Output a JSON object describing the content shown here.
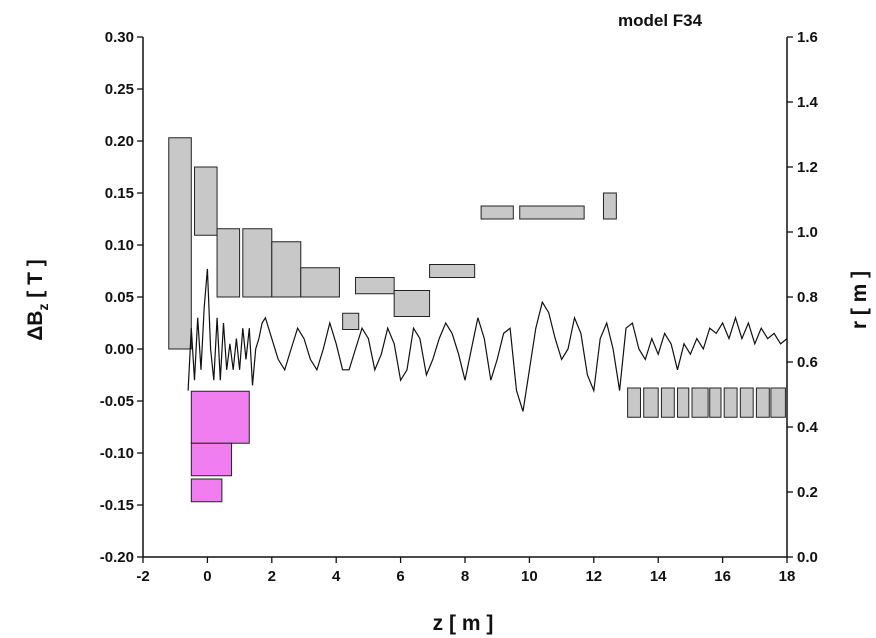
{
  "chart_data": {
    "type": "line",
    "annotation": "model F34",
    "xlabel": "z  [ m ]",
    "ylabel_left": "ΔB",
    "ylabel_left_sub": "z",
    "ylabel_left_unit": "  [ T ]",
    "ylabel_right": "r  [ m ]",
    "xlim": [
      -2,
      18
    ],
    "ylim_left": [
      -0.2,
      0.3
    ],
    "ylim_right": [
      0.0,
      1.6
    ],
    "x_ticks": [
      "-2",
      "0",
      "2",
      "4",
      "6",
      "8",
      "10",
      "12",
      "14",
      "16",
      "18"
    ],
    "y_left_ticks": [
      "-0.20",
      "-0.15",
      "-0.10",
      "-0.05",
      "0.00",
      "0.05",
      "0.10",
      "0.15",
      "0.20",
      "0.25",
      "0.30"
    ],
    "y_right_ticks": [
      "0.0",
      "0.2",
      "0.4",
      "0.6",
      "0.8",
      "1.0",
      "1.2",
      "1.4",
      "1.6"
    ],
    "series": [
      {
        "x": [
          -0.6,
          -0.5,
          -0.4,
          -0.3,
          -0.2,
          -0.1,
          0.0,
          0.1,
          0.2,
          0.3,
          0.4,
          0.5,
          0.6,
          0.7,
          0.8,
          0.9,
          1.0,
          1.1,
          1.2,
          1.3,
          1.4,
          1.5,
          1.6,
          1.7,
          1.8,
          1.9,
          2.0,
          2.2,
          2.4,
          2.6,
          2.8,
          3.0,
          3.2,
          3.4,
          3.6,
          3.8,
          4.0,
          4.2,
          4.4,
          4.6,
          4.8,
          5.0,
          5.2,
          5.4,
          5.6,
          5.8,
          6.0,
          6.2,
          6.4,
          6.6,
          6.8,
          7.0,
          7.2,
          7.4,
          7.6,
          7.8,
          8.0,
          8.2,
          8.4,
          8.6,
          8.8,
          9.0,
          9.2,
          9.4,
          9.6,
          9.8,
          10.0,
          10.2,
          10.4,
          10.6,
          10.8,
          11.0,
          11.2,
          11.4,
          11.6,
          11.8,
          12.0,
          12.2,
          12.4,
          12.6,
          12.8,
          13.0,
          13.2,
          13.4,
          13.6,
          13.8,
          14.0,
          14.2,
          14.4,
          14.6,
          14.8,
          15.0,
          15.2,
          15.4,
          15.6,
          15.8,
          16.0,
          16.2,
          16.4,
          16.6,
          16.8,
          17.0,
          17.2,
          17.4,
          17.6,
          17.8,
          18.0
        ],
        "y": [
          -0.04,
          0.02,
          -0.03,
          0.03,
          -0.02,
          0.04,
          0.077,
          0.0,
          -0.03,
          0.03,
          -0.03,
          0.025,
          -0.02,
          0.005,
          -0.02,
          0.01,
          -0.02,
          0.02,
          -0.01,
          0.02,
          -0.035,
          0.0,
          0.01,
          0.025,
          0.03,
          0.02,
          0.01,
          -0.01,
          -0.02,
          0.0,
          0.02,
          0.01,
          -0.01,
          -0.02,
          0.0,
          0.025,
          0.005,
          -0.02,
          -0.02,
          0.0,
          0.02,
          0.01,
          -0.02,
          -0.005,
          0.02,
          0.005,
          -0.03,
          -0.02,
          0.02,
          0.01,
          -0.025,
          -0.01,
          0.01,
          0.025,
          0.015,
          -0.005,
          -0.03,
          0.0,
          0.03,
          0.01,
          -0.03,
          -0.01,
          0.015,
          0.02,
          -0.04,
          -0.06,
          -0.02,
          0.02,
          0.045,
          0.035,
          0.01,
          -0.01,
          0.0,
          0.03,
          0.015,
          -0.025,
          -0.04,
          0.01,
          0.025,
          0.0,
          -0.04,
          0.02,
          0.025,
          0.0,
          -0.01,
          0.01,
          -0.005,
          0.015,
          0.005,
          -0.02,
          0.005,
          -0.005,
          0.01,
          0.0,
          0.02,
          0.015,
          0.025,
          0.01,
          0.03,
          0.01,
          0.025,
          0.005,
          0.02,
          0.01,
          0.015,
          0.005,
          0.01
        ]
      }
    ],
    "gray_blocks_r": [
      {
        "z": [
          -1.2,
          -0.5
        ],
        "r": [
          0.64,
          1.29
        ]
      },
      {
        "z": [
          -0.4,
          0.3
        ],
        "r": [
          0.99,
          1.2
        ]
      },
      {
        "z": [
          0.3,
          1.0
        ],
        "r": [
          0.8,
          1.01
        ]
      },
      {
        "z": [
          1.1,
          2.0
        ],
        "r": [
          0.8,
          1.01
        ]
      },
      {
        "z": [
          2.0,
          2.9
        ],
        "r": [
          0.8,
          0.97
        ]
      },
      {
        "z": [
          2.9,
          4.1
        ],
        "r": [
          0.8,
          0.89
        ]
      },
      {
        "z": [
          4.2,
          4.7
        ],
        "r": [
          0.7,
          0.75
        ]
      },
      {
        "z": [
          4.6,
          5.8
        ],
        "r": [
          0.81,
          0.86
        ]
      },
      {
        "z": [
          5.8,
          6.9
        ],
        "r": [
          0.74,
          0.82
        ]
      },
      {
        "z": [
          6.9,
          8.3
        ],
        "r": [
          0.86,
          0.9
        ]
      },
      {
        "z": [
          8.5,
          9.5
        ],
        "r": [
          1.04,
          1.08
        ]
      },
      {
        "z": [
          9.7,
          11.7
        ],
        "r": [
          1.04,
          1.08
        ]
      },
      {
        "z": [
          12.3,
          12.7
        ],
        "r": [
          1.04,
          1.12
        ]
      },
      {
        "z": [
          13.05,
          13.45
        ],
        "r": [
          0.43,
          0.52
        ]
      },
      {
        "z": [
          13.55,
          14.0
        ],
        "r": [
          0.43,
          0.52
        ]
      },
      {
        "z": [
          14.1,
          14.5
        ],
        "r": [
          0.43,
          0.52
        ]
      },
      {
        "z": [
          14.6,
          14.95
        ],
        "r": [
          0.43,
          0.52
        ]
      },
      {
        "z": [
          15.05,
          15.55
        ],
        "r": [
          0.43,
          0.52
        ]
      },
      {
        "z": [
          15.6,
          15.95
        ],
        "r": [
          0.43,
          0.52
        ]
      },
      {
        "z": [
          16.05,
          16.45
        ],
        "r": [
          0.43,
          0.52
        ]
      },
      {
        "z": [
          16.55,
          16.95
        ],
        "r": [
          0.43,
          0.52
        ]
      },
      {
        "z": [
          17.05,
          17.45
        ],
        "r": [
          0.43,
          0.52
        ]
      },
      {
        "z": [
          17.5,
          17.95
        ],
        "r": [
          0.43,
          0.52
        ]
      }
    ],
    "magenta_blocks_r": [
      {
        "z": [
          -0.5,
          1.3
        ],
        "r": [
          0.35,
          0.51
        ]
      },
      {
        "z": [
          -0.5,
          0.75
        ],
        "r": [
          0.25,
          0.35
        ]
      },
      {
        "z": [
          -0.5,
          0.45
        ],
        "r": [
          0.17,
          0.24
        ]
      }
    ],
    "colors": {
      "curve": "#111111",
      "gray_fill": "#c8c8c8",
      "magenta_fill": "#f07ef0",
      "stroke": "#222222"
    }
  }
}
